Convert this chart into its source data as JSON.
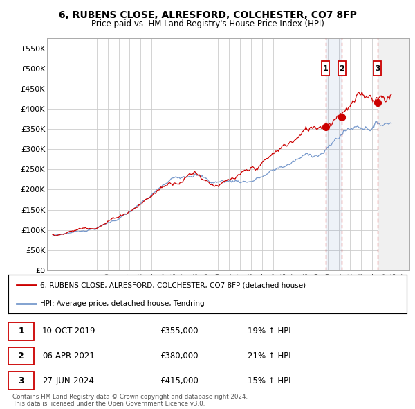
{
  "title": "6, RUBENS CLOSE, ALRESFORD, COLCHESTER, CO7 8FP",
  "subtitle": "Price paid vs. HM Land Registry's House Price Index (HPI)",
  "sale_dates_num": [
    2019.78,
    2021.27,
    2024.49
  ],
  "sale_prices": [
    355000,
    380000,
    415000
  ],
  "sale_labels": [
    "1",
    "2",
    "3"
  ],
  "sale_date_strings": [
    "10-OCT-2019",
    "06-APR-2021",
    "27-JUN-2024"
  ],
  "sale_price_strings": [
    "£355,000",
    "£380,000",
    "£415,000"
  ],
  "sale_hpi_strings": [
    "19% ↑ HPI",
    "21% ↑ HPI",
    "15% ↑ HPI"
  ],
  "red_line_color": "#cc0000",
  "blue_line_color": "#7799cc",
  "legend_label_red": "6, RUBENS CLOSE, ALRESFORD, COLCHESTER, CO7 8FP (detached house)",
  "legend_label_blue": "HPI: Average price, detached house, Tendring",
  "footer": "Contains HM Land Registry data © Crown copyright and database right 2024.\nThis data is licensed under the Open Government Licence v3.0.",
  "ylim": [
    0,
    575000
  ],
  "yticks": [
    0,
    50000,
    100000,
    150000,
    200000,
    250000,
    300000,
    350000,
    400000,
    450000,
    500000,
    550000
  ],
  "ytick_labels": [
    "£0",
    "£50K",
    "£100K",
    "£150K",
    "£200K",
    "£250K",
    "£300K",
    "£350K",
    "£400K",
    "£450K",
    "£500K",
    "£550K"
  ],
  "xmin": 1995,
  "xmax": 2027,
  "background_color": "#ffffff",
  "grid_color": "#cccccc"
}
